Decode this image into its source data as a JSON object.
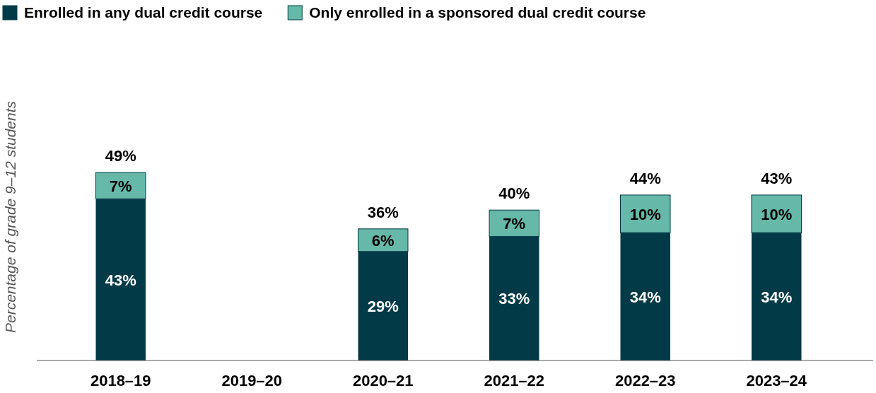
{
  "chart_data": {
    "type": "bar",
    "ylabel": "Percentage of grade 9–12 students",
    "categories": [
      "2018–19",
      "2019–20",
      "2020–21",
      "2021–22",
      "2022–23",
      "2023–24"
    ],
    "series": [
      {
        "name": "Enrolled in any dual credit course",
        "color": "#023a47",
        "values": [
          43,
          null,
          29,
          33,
          34,
          34
        ],
        "value_labels": [
          "43%",
          null,
          "29%",
          "33%",
          "34%",
          "34%"
        ]
      },
      {
        "name": "Only enrolled in a sponsored dual credit course",
        "color": "#66b8a8",
        "values": [
          7,
          null,
          6,
          7,
          10,
          10
        ],
        "value_labels": [
          "7%",
          null,
          "6%",
          "7%",
          "10%",
          "10%"
        ]
      }
    ],
    "stacked": true,
    "totals": [
      "49%",
      null,
      "36%",
      "40%",
      "44%",
      "43%"
    ],
    "legend": "top left"
  }
}
